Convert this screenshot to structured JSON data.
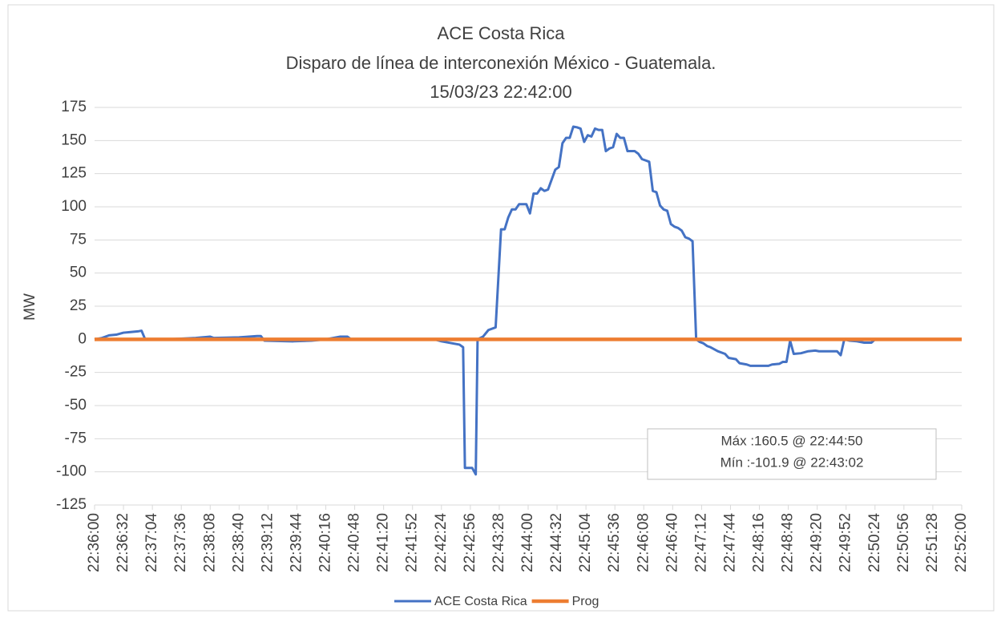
{
  "chart_data": {
    "type": "line",
    "title": "ACE Costa Rica",
    "subtitle": "Disparo de línea de interconexión México - Guatemala.",
    "date": "15/03/23 22:42:00",
    "ylabel": "MW",
    "ylim": [
      -125,
      175
    ],
    "yticks": [
      -125,
      -100,
      -75,
      -50,
      -25,
      0,
      25,
      50,
      75,
      100,
      125,
      150,
      175
    ],
    "xlim": [
      "22:36:00",
      "22:52:00"
    ],
    "xticks": [
      "22:36:00",
      "22:36:32",
      "22:37:04",
      "22:37:36",
      "22:38:08",
      "22:38:40",
      "22:39:12",
      "22:39:44",
      "22:40:16",
      "22:40:48",
      "22:41:20",
      "22:41:52",
      "22:42:24",
      "22:42:56",
      "22:43:28",
      "22:44:00",
      "22:44:32",
      "22:45:04",
      "22:45:36",
      "22:46:08",
      "22:46:40",
      "22:47:12",
      "22:47:44",
      "22:48:16",
      "22:48:48",
      "22:49:20",
      "22:49:52",
      "22:50:24",
      "22:50:56",
      "22:51:28",
      "22:52:00"
    ],
    "grid": true,
    "legend": "bottom",
    "annotations": [
      "Máx :160.5 @ 22:44:50",
      "Mín :-101.9 @ 22:43:02"
    ],
    "series": [
      {
        "name": "ACE Costa Rica",
        "color": "#4472c4",
        "x": [
          "22:36:00",
          "22:36:08",
          "22:36:16",
          "22:36:24",
          "22:36:32",
          "22:36:40",
          "22:36:48",
          "22:36:52",
          "22:36:56",
          "22:37:20",
          "22:37:52",
          "22:38:08",
          "22:38:12",
          "22:38:40",
          "22:39:00",
          "22:39:04",
          "22:39:08",
          "22:39:40",
          "22:40:00",
          "22:40:16",
          "22:40:32",
          "22:40:40",
          "22:40:44",
          "22:42:16",
          "22:42:24",
          "22:42:36",
          "22:42:44",
          "22:42:48",
          "22:42:50",
          "22:42:58",
          "22:43:02",
          "22:43:04",
          "22:43:10",
          "22:43:16",
          "22:43:24",
          "22:43:30",
          "22:43:34",
          "22:43:38",
          "22:43:42",
          "22:43:46",
          "22:43:50",
          "22:43:58",
          "22:44:02",
          "22:44:06",
          "22:44:10",
          "22:44:14",
          "22:44:18",
          "22:44:22",
          "22:44:30",
          "22:44:34",
          "22:44:38",
          "22:44:42",
          "22:44:46",
          "22:44:50",
          "22:44:54",
          "22:44:58",
          "22:45:02",
          "22:45:06",
          "22:45:10",
          "22:45:14",
          "22:45:18",
          "22:45:22",
          "22:45:26",
          "22:45:30",
          "22:45:34",
          "22:45:38",
          "22:45:42",
          "22:45:46",
          "22:45:50",
          "22:45:58",
          "22:46:02",
          "22:46:06",
          "22:46:10",
          "22:46:14",
          "22:46:18",
          "22:46:22",
          "22:46:26",
          "22:46:30",
          "22:46:34",
          "22:46:38",
          "22:46:42",
          "22:46:46",
          "22:46:50",
          "22:46:54",
          "22:46:58",
          "22:47:02",
          "22:47:06",
          "22:47:10",
          "22:47:14",
          "22:47:18",
          "22:47:22",
          "22:47:30",
          "22:47:38",
          "22:47:42",
          "22:47:50",
          "22:47:54",
          "22:48:02",
          "22:48:06",
          "22:48:26",
          "22:48:30",
          "22:48:38",
          "22:48:42",
          "22:48:46",
          "22:48:50",
          "22:48:54",
          "22:49:02",
          "22:49:10",
          "22:49:18",
          "22:49:22",
          "22:49:42",
          "22:49:46",
          "22:49:50",
          "22:49:56",
          "22:50:04",
          "22:50:12",
          "22:50:20",
          "22:50:24",
          "22:52:00"
        ],
        "values": [
          0,
          1,
          3,
          3.5,
          5,
          5.5,
          6,
          6.5,
          0,
          0,
          1,
          2,
          1,
          1.5,
          2.5,
          2.5,
          -1,
          -1.5,
          -1,
          0,
          2,
          2,
          0,
          0,
          -1.5,
          -3,
          -4,
          -6,
          -97,
          -97,
          -101.9,
          0,
          2,
          7,
          9,
          83,
          83,
          92,
          98,
          98,
          102,
          102,
          95,
          110,
          110,
          114,
          112,
          113,
          128,
          130,
          148,
          152,
          152,
          160.5,
          160,
          159,
          149,
          154,
          153,
          159,
          158,
          158,
          142,
          144,
          145,
          155,
          152,
          152,
          142,
          142,
          140,
          136,
          135,
          134,
          112,
          111,
          101,
          98,
          97,
          87,
          85,
          84,
          82,
          77,
          76,
          74,
          0,
          -2,
          -3,
          -5,
          -6,
          -9,
          -11,
          -14,
          -15,
          -18,
          -19,
          -20,
          -20,
          -19,
          -18.5,
          -17,
          -17,
          -1,
          -11,
          -10.5,
          -9,
          -8.5,
          -9,
          -9,
          -12,
          0,
          -1,
          -1.5,
          -2.5,
          -2.5,
          0,
          0
        ]
      },
      {
        "name": "Prog",
        "color": "#ed7d31",
        "x": [
          "22:36:00",
          "22:52:00"
        ],
        "values": [
          0,
          0
        ]
      }
    ]
  }
}
